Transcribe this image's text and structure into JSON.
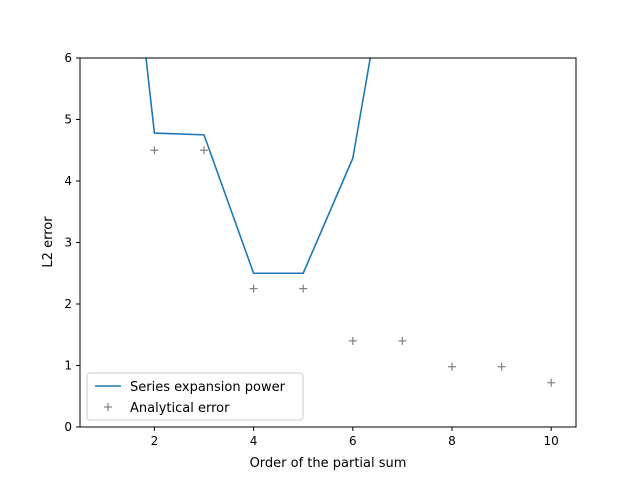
{
  "chart_data": {
    "type": "line",
    "title": "",
    "xlabel": "Order of the partial sum",
    "ylabel": "L2 error",
    "xlim": [
      0.5,
      10.5
    ],
    "ylim": [
      0,
      6
    ],
    "xticks": [
      2,
      4,
      6,
      8,
      10
    ],
    "yticks": [
      0,
      1,
      2,
      3,
      4,
      5,
      6
    ],
    "xtick_labels": [
      "2",
      "4",
      "6",
      "8",
      "10"
    ],
    "ytick_labels": [
      "0",
      "1",
      "2",
      "3",
      "4",
      "5",
      "6"
    ],
    "grid": false,
    "legend_position": "lower-left",
    "series": [
      {
        "name": "Series expansion power",
        "style": "line",
        "color": "#1f77b4",
        "x": [
          1,
          2,
          3,
          4,
          5,
          6,
          7
        ],
        "y": [
          12.0,
          4.78,
          4.75,
          2.5,
          2.5,
          4.37,
          9.0
        ]
      },
      {
        "name": "Analytical error",
        "style": "marker",
        "marker": "plus",
        "color": "#808080",
        "x": [
          2,
          3,
          4,
          5,
          6,
          7,
          8,
          9,
          10
        ],
        "y": [
          4.5,
          4.5,
          2.25,
          2.25,
          1.4,
          1.4,
          0.98,
          0.98,
          0.72
        ]
      }
    ]
  }
}
